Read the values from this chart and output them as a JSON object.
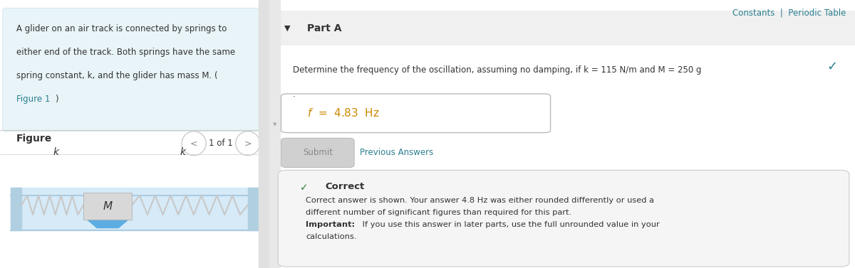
{
  "bg_color": "#ffffff",
  "left_panel_bg": "#e8f4f8",
  "figure_label": "Figure",
  "figure_nav": "1 of 1",
  "right_top_links": "Constants  |  Periodic Table",
  "part_a_label": "Part A",
  "checkmark_color": "#2a7f8f",
  "question_text": "Determine the frequency of the oscillation, assuming no damping, if k = 115 N/m and M = 250 g",
  "answer_box_text": "f =  4.83  Hz",
  "submit_text": "Submit",
  "previous_answers_text": "Previous Answers",
  "correct_header": "Correct",
  "correct_body_line1": "Correct answer is shown. Your answer 4.8 Hz was either rounded differently or used a",
  "correct_body_line2": "different number of significant figures than required for this part.",
  "correct_body_line3": "Important: If you use this answer in later parts, use the full unrounded value in your",
  "correct_body_line4": "calculations.",
  "link_color": "#2a7f8f",
  "text_color": "#333333",
  "divider_color": "#cccccc",
  "correct_box_bg": "#f5f5f5",
  "answer_box_bg": "#ffffff",
  "submit_bg": "#d0d0d0",
  "track_color_light": "#d6eaf8",
  "track_color_dark": "#a9cce3",
  "spring_color": "#c8c8c8",
  "wall_color": "#b0cfe0",
  "glider_color_top": "#d8d8d8",
  "glider_color_bottom": "#5dade2",
  "prob_text_line1": "A glider on an air track is connected by springs to",
  "prob_text_line2": "either end of the track. Both springs have the same",
  "prob_text_line3": "spring constant, k, and the glider has mass M. (",
  "prob_text_line4": "Figure 1)"
}
